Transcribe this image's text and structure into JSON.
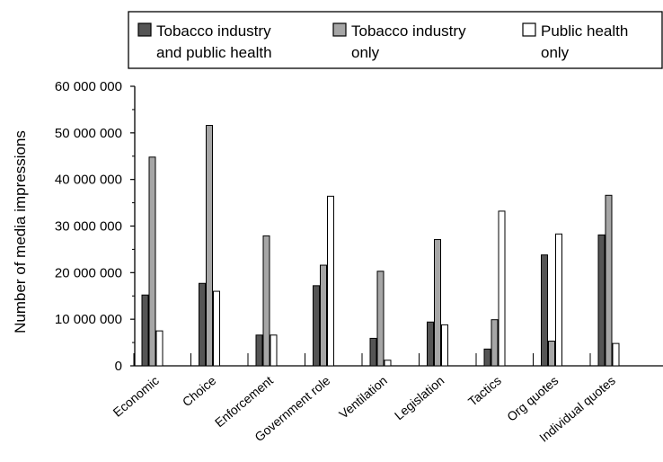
{
  "chart_data": {
    "type": "bar",
    "title": "",
    "xlabel": "",
    "ylabel": "Number of media impressions",
    "ylim": [
      0,
      60000000
    ],
    "yticks": [
      0,
      10000000,
      20000000,
      30000000,
      40000000,
      50000000,
      60000000
    ],
    "ytick_labels": [
      "0",
      "10 000 000",
      "20 000 000",
      "30 000 000",
      "40 000 000",
      "50 000 000",
      "60 000 000"
    ],
    "grid": false,
    "legend_position": "top",
    "categories": [
      "Economic",
      "Choice",
      "Enforcement",
      "Government role",
      "Ventilation",
      "Legislation",
      "Tactics",
      "Org quotes",
      "Individual quotes"
    ],
    "series": [
      {
        "name_lines": [
          "Tobacco industry",
          "and public health"
        ],
        "color": "#555555",
        "values": [
          15200000,
          17700000,
          6600000,
          17200000,
          5900000,
          9400000,
          3600000,
          23800000,
          28100000
        ]
      },
      {
        "name_lines": [
          "Tobacco industry",
          "only"
        ],
        "color": "#a6a6a6",
        "values": [
          44800000,
          51600000,
          27900000,
          21600000,
          20300000,
          27100000,
          9900000,
          5300000,
          36600000
        ]
      },
      {
        "name_lines": [
          "Public health",
          "only"
        ],
        "color": "#ffffff",
        "values": [
          7500000,
          16000000,
          6600000,
          36400000,
          1200000,
          8800000,
          33200000,
          28300000,
          4800000
        ]
      }
    ]
  }
}
